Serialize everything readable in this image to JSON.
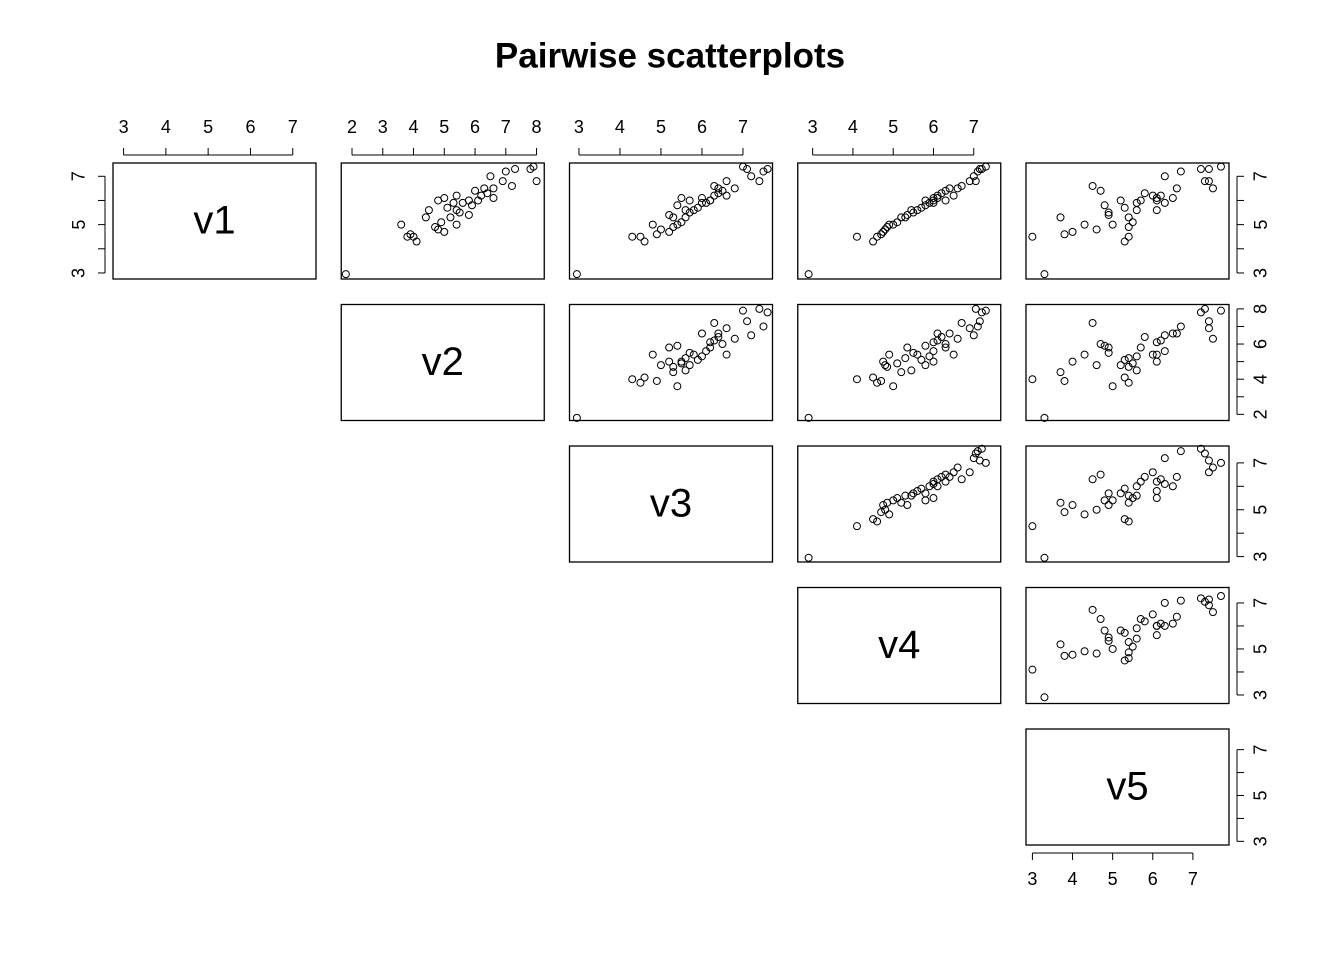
{
  "chart_data": {
    "type": "pairs",
    "title": "Pairwise scatterplots",
    "color": "#000000",
    "variables": [
      {
        "name": "v1",
        "lim": [
          2.75,
          7.55
        ],
        "ticks": [
          3,
          4,
          5,
          6,
          7
        ],
        "values": [
          2.95,
          4.5,
          4.3,
          4.5,
          4.6,
          4.7,
          4.8,
          4.9,
          5.0,
          5.1,
          5.3,
          5.3,
          5.5,
          5.6,
          5.7,
          5.8,
          5.9,
          6.0,
          5.9,
          6.0,
          6.1,
          6.2,
          6.3,
          6.4,
          6.5,
          6.0,
          6.2,
          6.5,
          6.6,
          6.8,
          7.0,
          7.2,
          7.3,
          7.3,
          7.4,
          6.8,
          5.0,
          5.4,
          6.1,
          5.6
        ]
      },
      {
        "name": "v2",
        "lim": [
          1.65,
          8.25
        ],
        "ticks": [
          2,
          3,
          4,
          5,
          6,
          7,
          8
        ],
        "values": [
          1.8,
          4.0,
          4.1,
          3.8,
          3.9,
          5.0,
          4.8,
          4.7,
          3.6,
          4.9,
          4.4,
          5.2,
          5.5,
          5.4,
          5.1,
          5.9,
          5.3,
          4.8,
          5.6,
          6.1,
          5.0,
          6.2,
          6.4,
          6.0,
          6.6,
          5.8,
          5.4,
          6.3,
          7.2,
          6.9,
          6.5,
          7.0,
          7.3,
          7.8,
          7.9,
          8.0,
          5.4,
          5.8,
          6.6,
          4.5
        ]
      },
      {
        "name": "v3",
        "lim": [
          2.77,
          7.72
        ],
        "ticks": [
          3,
          4,
          5,
          6,
          7
        ],
        "values": [
          2.95,
          4.3,
          4.6,
          4.5,
          4.9,
          5.2,
          5.0,
          5.3,
          5.4,
          5.5,
          5.3,
          5.6,
          5.7,
          5.8,
          5.9,
          5.4,
          6.0,
          5.7,
          6.1,
          6.2,
          5.5,
          6.3,
          6.4,
          6.5,
          6.4,
          6.2,
          6.6,
          6.8,
          6.3,
          6.6,
          7.2,
          7.5,
          7.1,
          7.6,
          7.0,
          7.4,
          4.8,
          5.2,
          6.0,
          5.6
        ]
      },
      {
        "name": "v4",
        "lim": [
          2.63,
          7.67
        ],
        "ticks": [
          3,
          4,
          5,
          6,
          7
        ],
        "values": [
          2.9,
          4.1,
          4.5,
          4.6,
          4.7,
          4.75,
          4.8,
          4.85,
          5.0,
          5.1,
          5.2,
          5.3,
          5.5,
          5.6,
          5.7,
          5.8,
          5.9,
          5.8,
          6.0,
          6.0,
          6.0,
          6.1,
          6.2,
          6.3,
          6.4,
          6.3,
          6.5,
          6.6,
          6.7,
          6.9,
          7.0,
          7.1,
          7.15,
          7.2,
          7.3,
          7.05,
          4.9,
          5.35,
          6.1,
          5.45
        ]
      },
      {
        "name": "v5",
        "lim": [
          2.84,
          7.9
        ],
        "ticks": [
          3,
          4,
          5,
          6,
          7
        ],
        "values": [
          3.3,
          3.0,
          5.3,
          5.4,
          3.8,
          4.0,
          4.6,
          5.4,
          5.0,
          5.5,
          3.7,
          5.4,
          4.9,
          6.1,
          5.3,
          4.8,
          5.6,
          5.2,
          6.3,
          6.1,
          6.1,
          6.2,
          5.8,
          4.7,
          6.6,
          5.7,
          6.0,
          7.5,
          4.5,
          7.4,
          6.3,
          6.7,
          7.4,
          7.2,
          7.7,
          7.3,
          4.3,
          4.9,
          6.5,
          5.6
        ]
      }
    ]
  }
}
